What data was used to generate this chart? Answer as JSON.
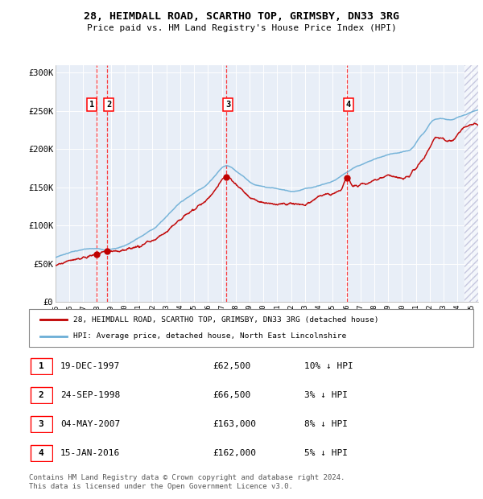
{
  "title": "28, HEIMDALL ROAD, SCARTHO TOP, GRIMSBY, DN33 3RG",
  "subtitle": "Price paid vs. HM Land Registry's House Price Index (HPI)",
  "ylim": [
    0,
    310000
  ],
  "yticks": [
    0,
    50000,
    100000,
    150000,
    200000,
    250000,
    300000
  ],
  "ytick_labels": [
    "£0",
    "£50K",
    "£100K",
    "£150K",
    "£200K",
    "£250K",
    "£300K"
  ],
  "xlim_start": 1995.0,
  "xlim_end": 2025.5,
  "xticks": [
    1995,
    1996,
    1997,
    1998,
    1999,
    2000,
    2001,
    2002,
    2003,
    2004,
    2005,
    2006,
    2007,
    2008,
    2009,
    2010,
    2011,
    2012,
    2013,
    2014,
    2015,
    2016,
    2017,
    2018,
    2019,
    2020,
    2021,
    2022,
    2023,
    2024,
    2025
  ],
  "sale_dates": [
    1997.96,
    1998.73,
    2007.34,
    2016.04
  ],
  "sale_prices": [
    62500,
    66500,
    163000,
    162000
  ],
  "sale_labels": [
    "1",
    "2",
    "3",
    "4"
  ],
  "hpi_color": "#6baed6",
  "price_color": "#c00000",
  "chart_bg": "#e8eef7",
  "legend_line1": "28, HEIMDALL ROAD, SCARTHO TOP, GRIMSBY, DN33 3RG (detached house)",
  "legend_line2": "HPI: Average price, detached house, North East Lincolnshire",
  "table_rows": [
    [
      "1",
      "19-DEC-1997",
      "£62,500",
      "10% ↓ HPI"
    ],
    [
      "2",
      "24-SEP-1998",
      "£66,500",
      "3% ↓ HPI"
    ],
    [
      "3",
      "04-MAY-2007",
      "£163,000",
      "8% ↓ HPI"
    ],
    [
      "4",
      "15-JAN-2016",
      "£162,000",
      "5% ↓ HPI"
    ]
  ],
  "footer": "Contains HM Land Registry data © Crown copyright and database right 2024.\nThis data is licensed under the Open Government Licence v3.0.",
  "hpi_anchors": [
    [
      1995.0,
      58000
    ],
    [
      1997.96,
      69500
    ],
    [
      1998.73,
      68500
    ],
    [
      2002.0,
      95000
    ],
    [
      2004.0,
      130000
    ],
    [
      2006.0,
      155000
    ],
    [
      2007.34,
      178000
    ],
    [
      2008.5,
      165000
    ],
    [
      2009.5,
      152000
    ],
    [
      2011.0,
      148000
    ],
    [
      2012.0,
      145000
    ],
    [
      2013.5,
      150000
    ],
    [
      2015.0,
      158000
    ],
    [
      2016.04,
      170000
    ],
    [
      2017.5,
      183000
    ],
    [
      2019.0,
      192000
    ],
    [
      2020.5,
      198000
    ],
    [
      2021.5,
      220000
    ],
    [
      2022.5,
      240000
    ],
    [
      2023.5,
      238000
    ],
    [
      2024.5,
      245000
    ],
    [
      2025.3,
      250000
    ]
  ],
  "price_anchors": [
    [
      1995.0,
      48000
    ],
    [
      1997.0,
      58000
    ],
    [
      1997.96,
      62500
    ],
    [
      1998.73,
      66500
    ],
    [
      2000.0,
      68000
    ],
    [
      2002.0,
      80000
    ],
    [
      2004.0,
      108000
    ],
    [
      2006.0,
      135000
    ],
    [
      2007.34,
      163000
    ],
    [
      2008.0,
      155000
    ],
    [
      2009.0,
      138000
    ],
    [
      2010.0,
      130000
    ],
    [
      2011.5,
      128000
    ],
    [
      2013.0,
      128000
    ],
    [
      2014.0,
      138000
    ],
    [
      2015.5,
      145000
    ],
    [
      2016.04,
      162000
    ],
    [
      2016.5,
      152000
    ],
    [
      2018.0,
      158000
    ],
    [
      2019.0,
      165000
    ],
    [
      2020.0,
      162000
    ],
    [
      2021.5,
      185000
    ],
    [
      2022.5,
      215000
    ],
    [
      2023.5,
      210000
    ],
    [
      2024.5,
      228000
    ],
    [
      2025.3,
      232000
    ]
  ]
}
